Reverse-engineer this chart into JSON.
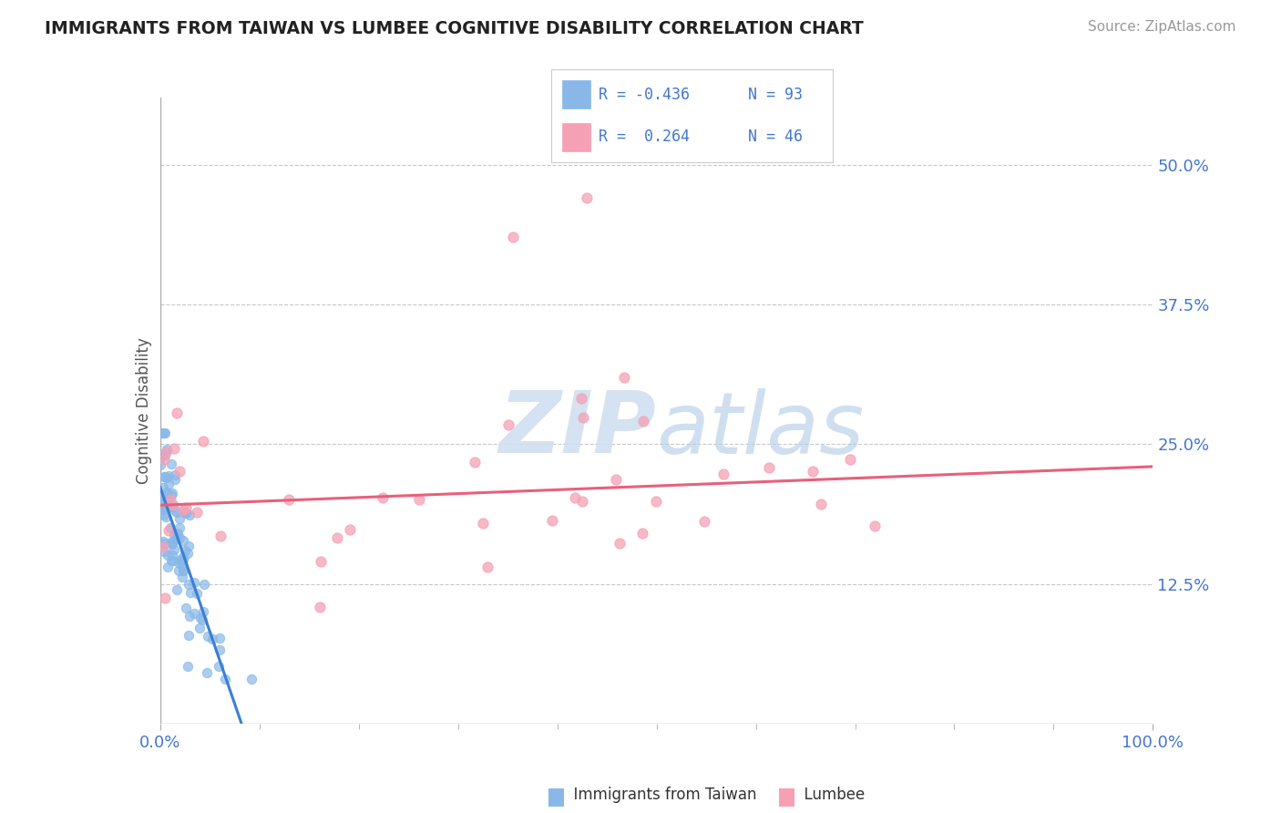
{
  "title": "IMMIGRANTS FROM TAIWAN VS LUMBEE COGNITIVE DISABILITY CORRELATION CHART",
  "source": "Source: ZipAtlas.com",
  "ylabel": "Cognitive Disability",
  "y_tick_labels": [
    "12.5%",
    "25.0%",
    "37.5%",
    "50.0%"
  ],
  "y_tick_values": [
    0.125,
    0.25,
    0.375,
    0.5
  ],
  "xlim": [
    0.0,
    1.0
  ],
  "ylim": [
    0.0,
    0.56
  ],
  "background_color": "#ffffff",
  "grid_color": "#c8c8c8",
  "color_blue": "#89b8e8",
  "color_pink": "#f5a0b5",
  "color_blue_line": "#3a7fd5",
  "color_pink_line": "#e8607a",
  "color_blue_text": "#4477cc",
  "watermark_color": "#d0dff0",
  "title_color": "#222222",
  "source_color": "#999999"
}
